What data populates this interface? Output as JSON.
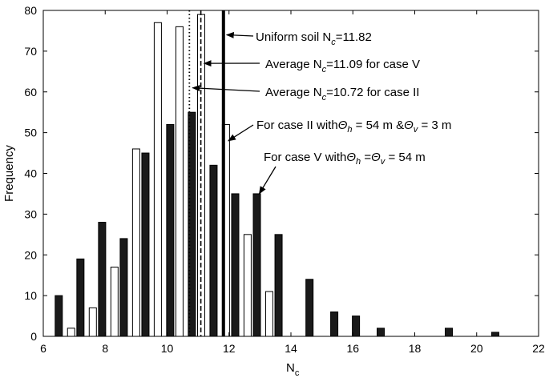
{
  "chart_data": {
    "type": "bar",
    "xlabel": "N",
    "xlabel_subscript": "c",
    "ylabel": "Frequency",
    "xlim": [
      6,
      22
    ],
    "ylim": [
      0,
      80
    ],
    "xticks": [
      6,
      8,
      10,
      12,
      14,
      16,
      18,
      20,
      22
    ],
    "yticks": [
      0,
      10,
      20,
      30,
      40,
      50,
      60,
      70,
      80
    ],
    "grid": false,
    "series": [
      {
        "fill": "#1a1a1a",
        "points": [
          {
            "x": 6.5,
            "y": 10
          },
          {
            "x": 7.2,
            "y": 19
          },
          {
            "x": 7.9,
            "y": 28
          },
          {
            "x": 8.6,
            "y": 24
          },
          {
            "x": 9.3,
            "y": 45
          },
          {
            "x": 10.1,
            "y": 52
          },
          {
            "x": 10.8,
            "y": 55
          },
          {
            "x": 11.5,
            "y": 42
          },
          {
            "x": 12.2,
            "y": 35
          },
          {
            "x": 12.9,
            "y": 35
          },
          {
            "x": 13.6,
            "y": 25
          },
          {
            "x": 14.6,
            "y": 14
          },
          {
            "x": 15.4,
            "y": 6
          },
          {
            "x": 16.1,
            "y": 5
          },
          {
            "x": 16.9,
            "y": 2
          },
          {
            "x": 19.1,
            "y": 2
          },
          {
            "x": 20.6,
            "y": 1
          }
        ]
      },
      {
        "fill": "#ffffff",
        "points": [
          {
            "x": 6.9,
            "y": 2
          },
          {
            "x": 7.6,
            "y": 7
          },
          {
            "x": 8.3,
            "y": 17
          },
          {
            "x": 9.0,
            "y": 46
          },
          {
            "x": 9.7,
            "y": 77
          },
          {
            "x": 10.4,
            "y": 76
          },
          {
            "x": 11.1,
            "y": 79
          },
          {
            "x": 11.9,
            "y": 52
          },
          {
            "x": 12.6,
            "y": 25
          },
          {
            "x": 13.3,
            "y": 11
          }
        ]
      }
    ],
    "reference_lines": [
      {
        "x": 11.82,
        "style": "solid-thick"
      },
      {
        "x": 11.09,
        "style": "dashed"
      },
      {
        "x": 10.72,
        "style": "dotted"
      }
    ],
    "annotations": [
      {
        "pre": "Uniform soil  N",
        "sub": "c",
        "post": "=11.82",
        "arrow_to": {
          "x": 11.82,
          "y": 74
        }
      },
      {
        "pre": "Average  N",
        "sub": "c",
        "post": "=11.09 for case V",
        "arrow_to": {
          "x": 11.09,
          "y": 67
        }
      },
      {
        "pre": "Average  N",
        "sub": "c",
        "post": "=10.72 for case II",
        "arrow_to": {
          "x": 10.72,
          "y": 61
        }
      },
      {
        "pre": "For case II with",
        "theta1": "Θ",
        "theta1_sub": "h",
        "mid": " = 54 m &",
        "theta2": "Θ",
        "theta2_sub": "v",
        "post": " = 3 m",
        "arrow_to": {
          "x": 11.9,
          "y": 48
        }
      },
      {
        "pre": "For case V with",
        "theta1": "Θ",
        "theta1_sub": "h",
        "mid": " =",
        "theta2": "Θ",
        "theta2_sub": "v",
        "post": " = 54 m",
        "arrow_to": {
          "x": 12.9,
          "y": 35
        }
      }
    ]
  }
}
